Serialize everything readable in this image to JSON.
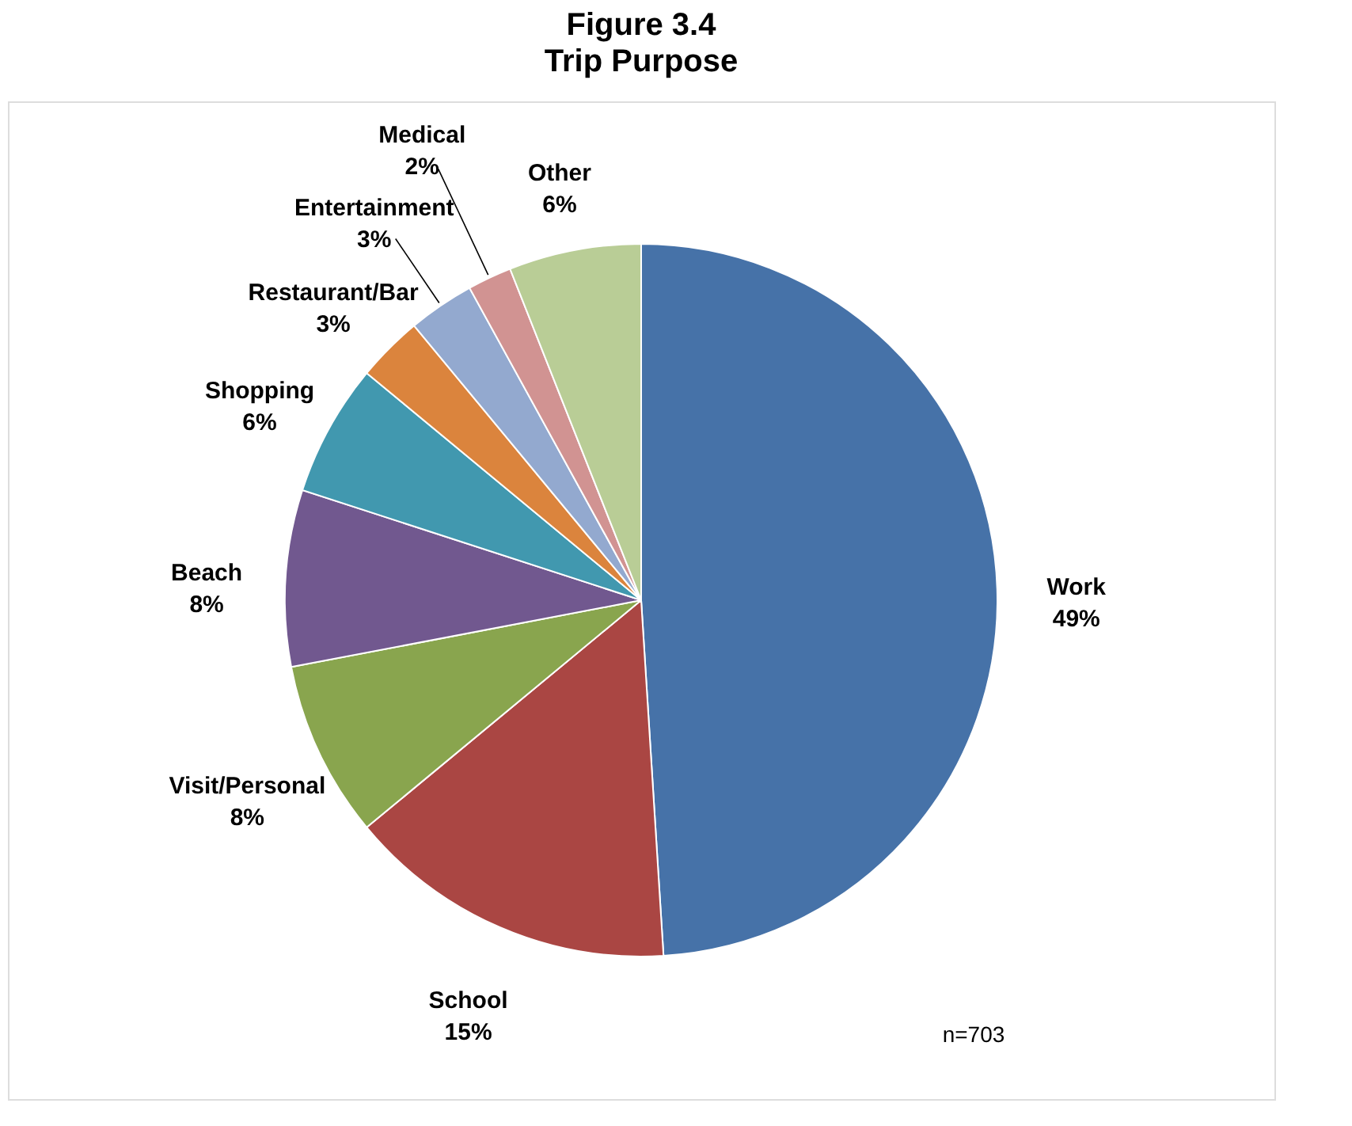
{
  "chart_data": {
    "type": "pie",
    "title": "Figure 3.4",
    "subtitle": "Trip Purpose",
    "categories": [
      "Work",
      "School",
      "Visit/Personal",
      "Beach",
      "Shopping",
      "Restaurant/Bar",
      "Entertainment",
      "Medical",
      "Other"
    ],
    "values": [
      49,
      15,
      8,
      8,
      6,
      3,
      3,
      2,
      6
    ],
    "value_labels": [
      "49%",
      "15%",
      "8%",
      "8%",
      "6%",
      "3%",
      "3%",
      "2%",
      "6%"
    ],
    "colors": [
      "#4672a8",
      "#aa4643",
      "#89a54e",
      "#71588f",
      "#4198af",
      "#db843d",
      "#93a9cf",
      "#d19392",
      "#b9cd96"
    ],
    "annotations": [
      {
        "text": "n=703"
      }
    ],
    "legend": false
  }
}
